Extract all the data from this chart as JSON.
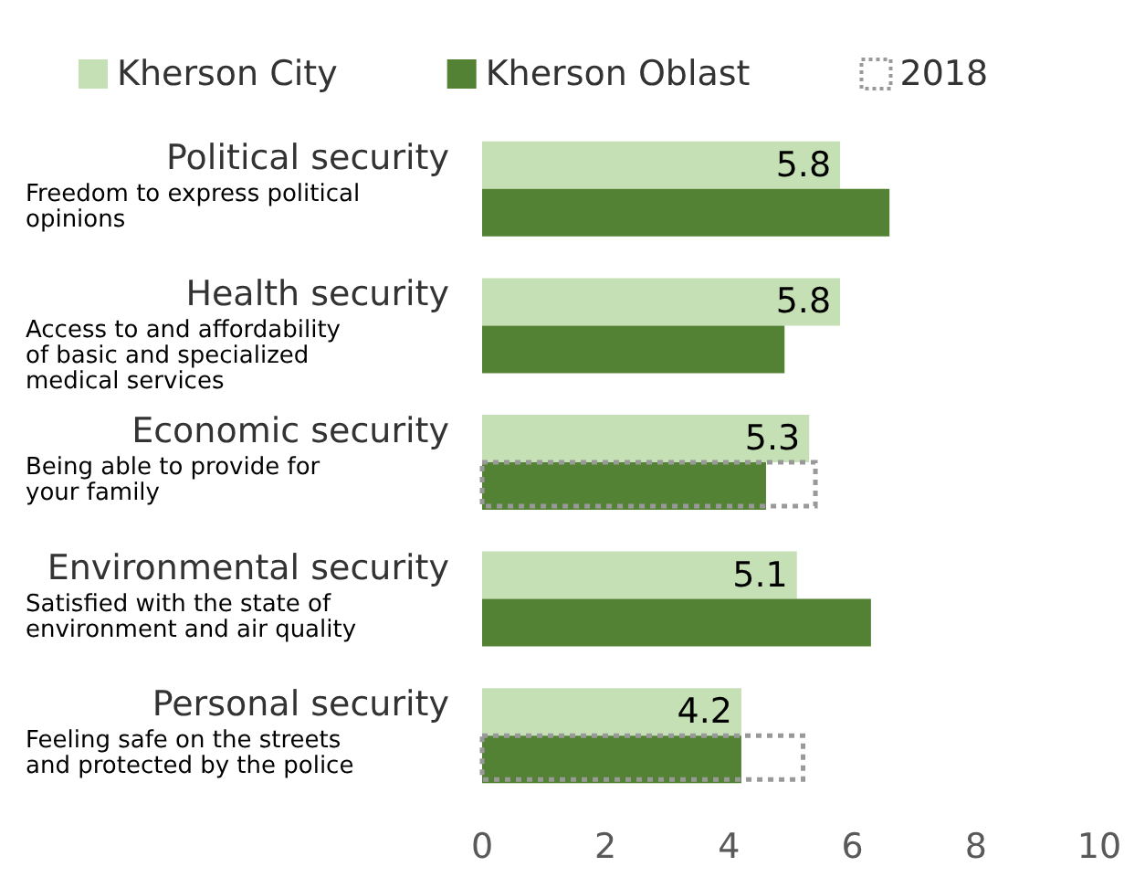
{
  "chart_data": {
    "type": "bar",
    "orientation": "horizontal",
    "categories": [
      "Political security",
      "Health security",
      "Economic security",
      "Environmental security",
      "Personal security"
    ],
    "annotations": [
      "Freedom to express political opinions",
      "Access to and affordability of basic and specialized medical services",
      "Being able to provide for your family",
      "Satisfied with the state of environment and air quality",
      "Feeling safe on the streets and protected by the police"
    ],
    "series": [
      {
        "name": "Kherson City",
        "color": "#c5e0b4",
        "values": [
          5.8,
          5.8,
          5.3,
          5.1,
          4.2
        ],
        "value_labels": [
          "5.8",
          "5.8",
          "5.3",
          "5.1",
          "4.2"
        ]
      },
      {
        "name": "Kherson Oblast",
        "color": "#548235",
        "values": [
          6.6,
          4.9,
          4.6,
          6.3,
          4.2
        ]
      },
      {
        "name": "2018",
        "color": "#999999",
        "line_style": "dotted",
        "values": [
          null,
          null,
          5.4,
          null,
          5.2
        ]
      }
    ],
    "xlim": [
      0,
      10
    ],
    "xticks": [
      0,
      2,
      4,
      6,
      8,
      10
    ],
    "grid": false,
    "legend": "top"
  }
}
